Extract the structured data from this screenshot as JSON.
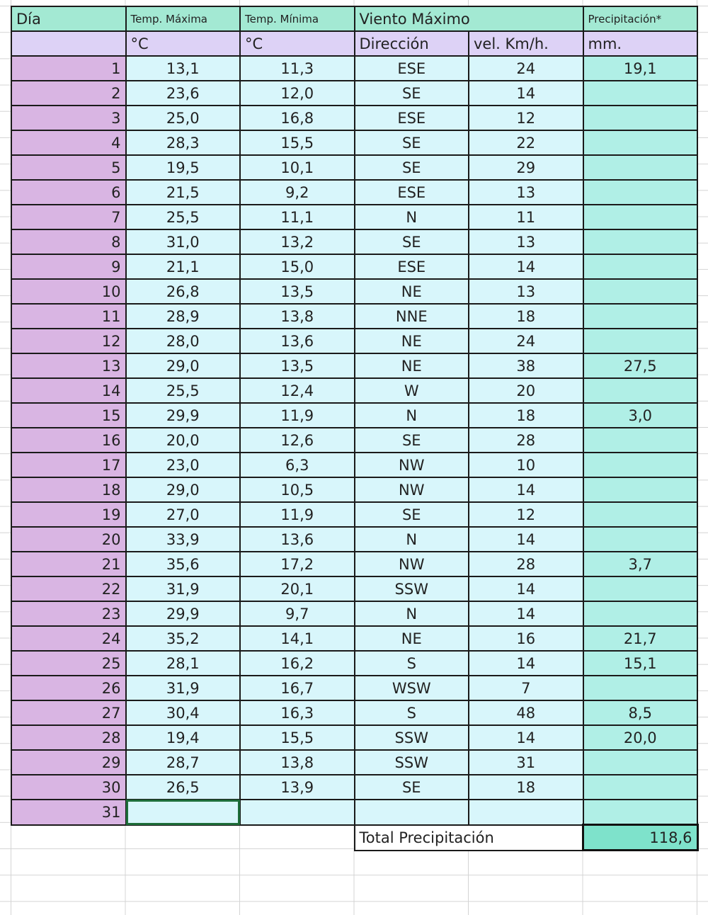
{
  "headers": {
    "day": "Día",
    "tmax": "Temp. Máxima",
    "tmin": "Temp. Mínima",
    "wind": "Viento Máximo",
    "precip": "Precipitación*"
  },
  "units": {
    "day": "",
    "tmax": "°C",
    "tmin": "°C",
    "dir": "Dirección",
    "vel": "vel. Km/h.",
    "precip": "mm."
  },
  "rows": [
    [
      "1",
      "13,1",
      "11,3",
      "ESE",
      "24",
      "19,1"
    ],
    [
      "2",
      "23,6",
      "12,0",
      "SE",
      "14",
      ""
    ],
    [
      "3",
      "25,0",
      "16,8",
      "ESE",
      "12",
      ""
    ],
    [
      "4",
      "28,3",
      "15,5",
      "SE",
      "22",
      ""
    ],
    [
      "5",
      "19,5",
      "10,1",
      "SE",
      "29",
      ""
    ],
    [
      "6",
      "21,5",
      "9,2",
      "ESE",
      "13",
      ""
    ],
    [
      "7",
      "25,5",
      "11,1",
      "N",
      "11",
      ""
    ],
    [
      "8",
      "31,0",
      "13,2",
      "SE",
      "13",
      ""
    ],
    [
      "9",
      "21,1",
      "15,0",
      "ESE",
      "14",
      ""
    ],
    [
      "10",
      "26,8",
      "13,5",
      "NE",
      "13",
      ""
    ],
    [
      "11",
      "28,9",
      "13,8",
      "NNE",
      "18",
      ""
    ],
    [
      "12",
      "28,0",
      "13,6",
      "NE",
      "24",
      ""
    ],
    [
      "13",
      "29,0",
      "13,5",
      "NE",
      "38",
      "27,5"
    ],
    [
      "14",
      "25,5",
      "12,4",
      "W",
      "20",
      ""
    ],
    [
      "15",
      "29,9",
      "11,9",
      "N",
      "18",
      "3,0"
    ],
    [
      "16",
      "20,0",
      "12,6",
      "SE",
      "28",
      ""
    ],
    [
      "17",
      "23,0",
      "6,3",
      "NW",
      "10",
      ""
    ],
    [
      "18",
      "29,0",
      "10,5",
      "NW",
      "14",
      ""
    ],
    [
      "19",
      "27,0",
      "11,9",
      "SE",
      "12",
      ""
    ],
    [
      "20",
      "33,9",
      "13,6",
      "N",
      "14",
      ""
    ],
    [
      "21",
      "35,6",
      "17,2",
      "NW",
      "28",
      "3,7"
    ],
    [
      "22",
      "31,9",
      "20,1",
      "SSW",
      "14",
      ""
    ],
    [
      "23",
      "29,9",
      "9,7",
      "N",
      "14",
      ""
    ],
    [
      "24",
      "35,2",
      "14,1",
      "NE",
      "16",
      "21,7"
    ],
    [
      "25",
      "28,1",
      "16,2",
      "S",
      "14",
      "15,1"
    ],
    [
      "26",
      "31,9",
      "16,7",
      "WSW",
      "7",
      ""
    ],
    [
      "27",
      "30,4",
      "16,3",
      "S",
      "48",
      "8,5"
    ],
    [
      "28",
      "19,4",
      "15,5",
      "SSW",
      "14",
      "20,0"
    ],
    [
      "29",
      "28,7",
      "13,8",
      "SSW",
      "31",
      ""
    ],
    [
      "30",
      "26,5",
      "13,9",
      "SE",
      "18",
      ""
    ],
    [
      "31",
      "",
      "",
      "",
      "",
      ""
    ]
  ],
  "total": {
    "label": "Total Precipitación",
    "value": "118,6"
  }
}
